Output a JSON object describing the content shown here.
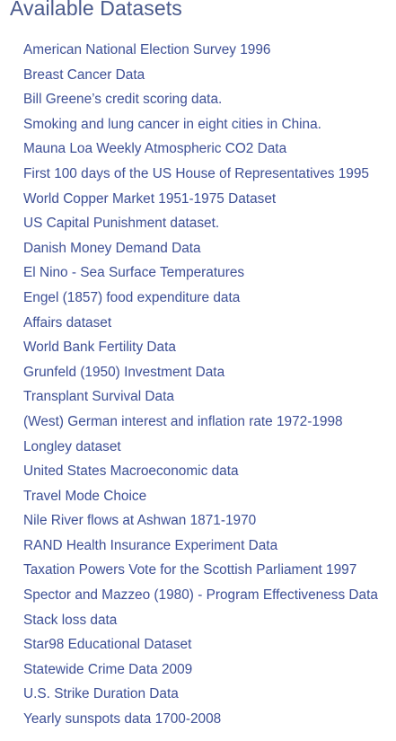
{
  "colors": {
    "heading": "#4a5a8c",
    "link": "#3d4f95",
    "background": "#ffffff"
  },
  "section": {
    "title": "Available Datasets"
  },
  "datasets": [
    "American National Election Survey 1996",
    "Breast Cancer Data",
    "Bill Greene’s credit scoring data.",
    "Smoking and lung cancer in eight cities in China.",
    "Mauna Loa Weekly Atmospheric CO2 Data",
    "First 100 days of the US House of Representatives 1995",
    "World Copper Market 1951-1975 Dataset",
    "US Capital Punishment dataset.",
    "Danish Money Demand Data",
    "El Nino - Sea Surface Temperatures",
    "Engel (1857) food expenditure data",
    "Affairs dataset",
    "World Bank Fertility Data",
    "Grunfeld (1950) Investment Data",
    "Transplant Survival Data",
    "(West) German interest and inflation rate 1972-1998",
    "Longley dataset",
    "United States Macroeconomic data",
    "Travel Mode Choice",
    "Nile River flows at Ashwan 1871-1970",
    "RAND Health Insurance Experiment Data",
    "Taxation Powers Vote for the Scottish Parliament 1997",
    "Spector and Mazzeo (1980) - Program Effectiveness Data",
    "Stack loss data",
    "Star98 Educational Dataset",
    "Statewide Crime Data 2009",
    "U.S. Strike Duration Data",
    "Yearly sunspots data 1700-2008"
  ]
}
